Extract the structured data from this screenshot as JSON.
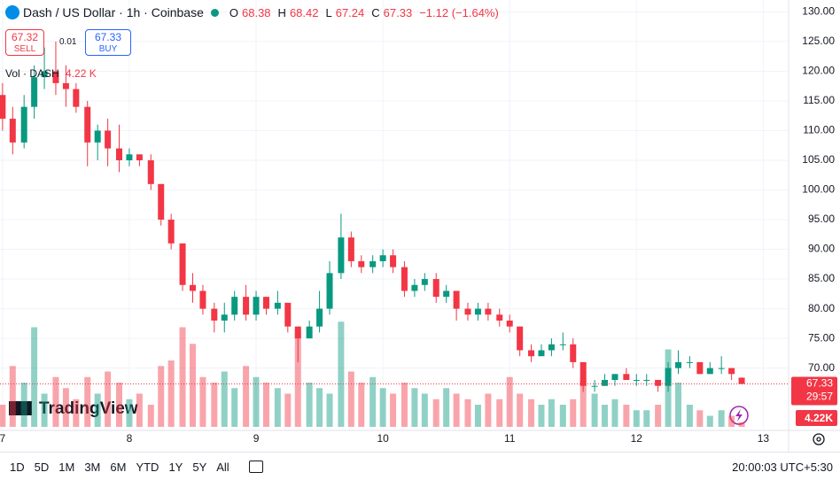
{
  "header": {
    "symbol": "Dash / US Dollar · 1h · Coinbase",
    "ohlc": [
      {
        "label": "O",
        "value": 68.38
      },
      {
        "label": "H",
        "value": 68.42
      },
      {
        "label": "L",
        "value": 67.24
      },
      {
        "label": "C",
        "value": 67.33
      }
    ],
    "change": "−1.12 (−1.64%)"
  },
  "trade": {
    "sell_price": 67.32,
    "sell_label": "SELL",
    "spread": 0.01,
    "buy_price": 67.33,
    "buy_label": "BUY"
  },
  "volume_legend": {
    "label": "Vol · DASH",
    "value": "4.22 K"
  },
  "logo": "TradingView",
  "toolbar": {
    "ranges": [
      "1D",
      "5D",
      "1M",
      "3M",
      "6M",
      "YTD",
      "1Y",
      "5Y",
      "All"
    ],
    "clock": "20:00:03 UTC+5:30"
  },
  "chart_data": {
    "type": "candlestick",
    "x": [
      7,
      7.08,
      7.17,
      7.25,
      7.33,
      7.42,
      7.5,
      7.58,
      7.67,
      7.75,
      7.83,
      7.92,
      8,
      8.08,
      8.17,
      8.25,
      8.33,
      8.42,
      8.5,
      8.58,
      8.67,
      8.75,
      8.83,
      8.92,
      9,
      9.08,
      9.17,
      9.25,
      9.33,
      9.42,
      9.5,
      9.58,
      9.67,
      9.75,
      9.83,
      9.92,
      10,
      10.08,
      10.17,
      10.25,
      10.33,
      10.42,
      10.5,
      10.58,
      10.67,
      10.75,
      10.83,
      10.92,
      11,
      11.08,
      11.17,
      11.25,
      11.33,
      11.42,
      11.5,
      11.58,
      11.67,
      11.75,
      11.83,
      11.92,
      12,
      12.08,
      12.17,
      12.25,
      12.33,
      12.42,
      12.5,
      12.58,
      12.67,
      12.75,
      12.83
    ],
    "open": [
      116,
      112,
      108,
      114,
      119,
      120,
      118,
      117,
      114,
      108,
      110,
      107,
      105,
      106,
      105,
      101,
      95,
      91,
      84,
      83,
      80,
      78,
      79,
      82,
      79,
      82,
      80,
      81,
      77,
      75,
      77,
      80,
      86,
      92,
      88,
      87,
      88,
      89,
      87,
      83,
      84,
      85,
      82,
      83,
      80,
      79,
      80,
      79,
      78,
      77,
      73,
      72,
      73,
      74,
      74,
      71,
      67,
      67,
      68,
      69,
      68,
      68,
      68,
      67,
      70,
      71,
      71,
      69,
      70,
      70,
      68.38
    ],
    "high": [
      118,
      114,
      116,
      121,
      124,
      125,
      121,
      118,
      115,
      111,
      112,
      111,
      107,
      106,
      106,
      101,
      96,
      91,
      86,
      84,
      81,
      81,
      83,
      84,
      83,
      82,
      83,
      81,
      77,
      78,
      83,
      88,
      96,
      93,
      89,
      89,
      90,
      90,
      88,
      85,
      86,
      86,
      84,
      83,
      81,
      81,
      81,
      80,
      79,
      77,
      74,
      74,
      75,
      76,
      75,
      71,
      68,
      69,
      69,
      70,
      69,
      69,
      68,
      71,
      73,
      72,
      71,
      71,
      72,
      70,
      68.42
    ],
    "low": [
      110,
      106,
      107,
      112,
      117,
      116,
      114,
      113,
      104,
      105,
      104,
      103,
      104,
      104,
      100,
      94,
      90,
      83,
      81,
      79,
      76,
      76,
      78,
      78,
      78,
      79,
      79,
      76,
      71,
      75,
      76,
      79,
      85,
      87,
      86,
      86,
      87,
      86,
      82,
      82,
      83,
      81,
      81,
      78,
      78,
      78,
      78,
      77,
      76,
      72,
      71,
      72,
      72,
      73,
      70,
      66,
      66,
      67,
      67,
      68,
      67,
      67,
      66,
      66,
      69,
      70,
      69,
      69,
      69,
      68,
      67.24
    ],
    "close": [
      112,
      108,
      114,
      119,
      120,
      118,
      117,
      114,
      108,
      110,
      107,
      105,
      106,
      105,
      101,
      95,
      91,
      84,
      83,
      80,
      78,
      79,
      82,
      79,
      82,
      80,
      81,
      77,
      75,
      77,
      80,
      86,
      92,
      88,
      87,
      88,
      89,
      87,
      83,
      84,
      85,
      82,
      83,
      80,
      79,
      80,
      79,
      78,
      77,
      73,
      72,
      73,
      74,
      74,
      71,
      67,
      67,
      68,
      69,
      68,
      68,
      68,
      67,
      70,
      71,
      71,
      69,
      70,
      70,
      69,
      67.33
    ],
    "volume": [
      20,
      55,
      40,
      90,
      30,
      45,
      35,
      25,
      45,
      30,
      50,
      40,
      25,
      30,
      20,
      55,
      60,
      90,
      75,
      45,
      40,
      50,
      35,
      55,
      45,
      40,
      35,
      30,
      85,
      40,
      35,
      30,
      95,
      50,
      40,
      45,
      35,
      30,
      40,
      35,
      30,
      25,
      35,
      30,
      25,
      20,
      30,
      25,
      45,
      30,
      25,
      20,
      25,
      20,
      25,
      45,
      30,
      20,
      25,
      20,
      15,
      15,
      20,
      70,
      40,
      20,
      15,
      10,
      15,
      10,
      4.22
    ],
    "volume_label": "4.22K",
    "up_color": "#089981",
    "down_color": "#f23645",
    "xlim": [
      6.98,
      13.2
    ],
    "xticks": [
      7,
      8,
      9,
      10,
      11,
      12,
      13
    ],
    "ylim": [
      59.5,
      132
    ],
    "yticks": [
      {
        "value": 70,
        "label": "70.00"
      },
      {
        "value": 75,
        "label": "75.00"
      },
      {
        "value": 80,
        "label": "80.00"
      },
      {
        "value": 85,
        "label": "85.00"
      },
      {
        "value": 90,
        "label": "90.00"
      },
      {
        "value": 95,
        "label": "95.00"
      },
      {
        "value": 100,
        "label": "100.00"
      },
      {
        "value": 105,
        "label": "105.00"
      },
      {
        "value": 110,
        "label": "110.00"
      },
      {
        "value": 115,
        "label": "115.00"
      },
      {
        "value": 120,
        "label": "120.00"
      },
      {
        "value": 125,
        "label": "125.00"
      },
      {
        "value": 130,
        "label": "130.00"
      }
    ],
    "last_price": 67.33,
    "countdown": "29:57"
  }
}
